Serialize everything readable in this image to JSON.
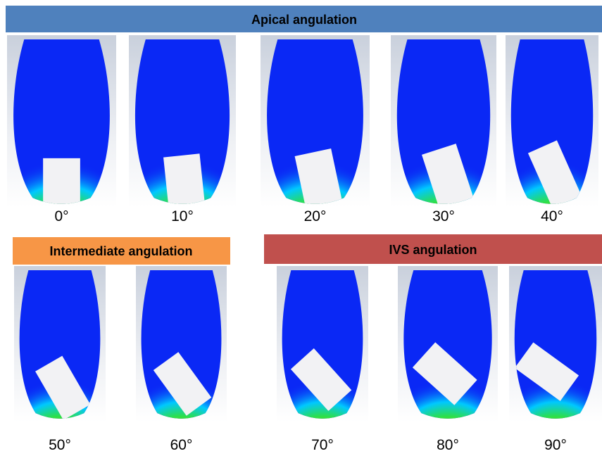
{
  "headers": {
    "apical": "Apical angulation",
    "intermediate": "Intermediate angulation",
    "ivs": "IVS angulation"
  },
  "panels": [
    {
      "label": "0°"
    },
    {
      "label": "10°"
    },
    {
      "label": "20°"
    },
    {
      "label": "30°"
    },
    {
      "label": "40°"
    },
    {
      "label": "50°"
    },
    {
      "label": "60°"
    },
    {
      "label": "70°"
    },
    {
      "label": "80°"
    },
    {
      "label": "90°"
    }
  ]
}
